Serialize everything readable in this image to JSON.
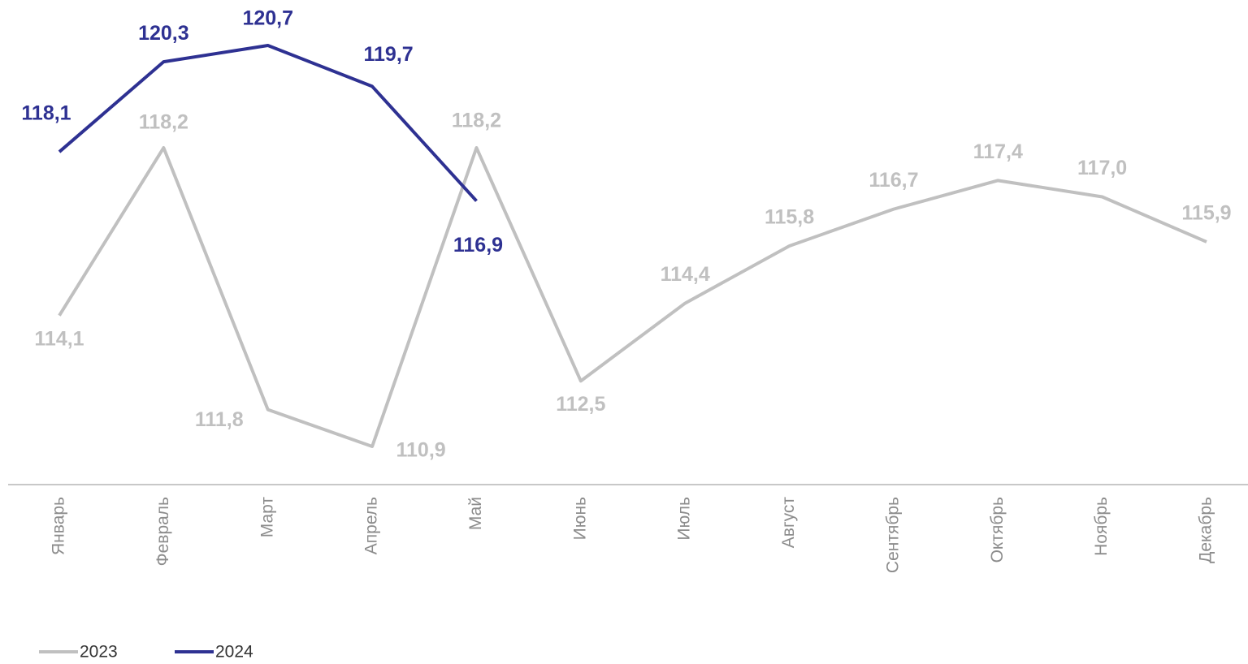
{
  "chart_data": {
    "type": "line",
    "categories": [
      "Январь",
      "Февраль",
      "Март",
      "Апрель",
      "Май",
      "Июнь",
      "Июль",
      "Август",
      "Сентябрь",
      "Октябрь",
      "Ноябрь",
      "Декабрь"
    ],
    "series": [
      {
        "name": "2023",
        "color": "#c0c0c0",
        "values": [
          114.1,
          118.2,
          111.8,
          110.9,
          118.2,
          112.5,
          114.4,
          115.8,
          116.7,
          117.4,
          117.0,
          115.9
        ],
        "value_labels": [
          "114,1",
          "118,2",
          "111,8",
          "110,9",
          "118,2",
          "112,5",
          "114,4",
          "115,8",
          "116,7",
          "117,4",
          "117,0",
          "115,9"
        ]
      },
      {
        "name": "2024",
        "color": "#2e3192",
        "values": [
          118.1,
          120.3,
          120.7,
          119.7,
          116.9,
          null,
          null,
          null,
          null,
          null,
          null,
          null
        ],
        "value_labels": [
          "118,1",
          "120,3",
          "120,7",
          "119,7",
          "116,9",
          null,
          null,
          null,
          null,
          null,
          null,
          null
        ]
      }
    ]
  }
}
